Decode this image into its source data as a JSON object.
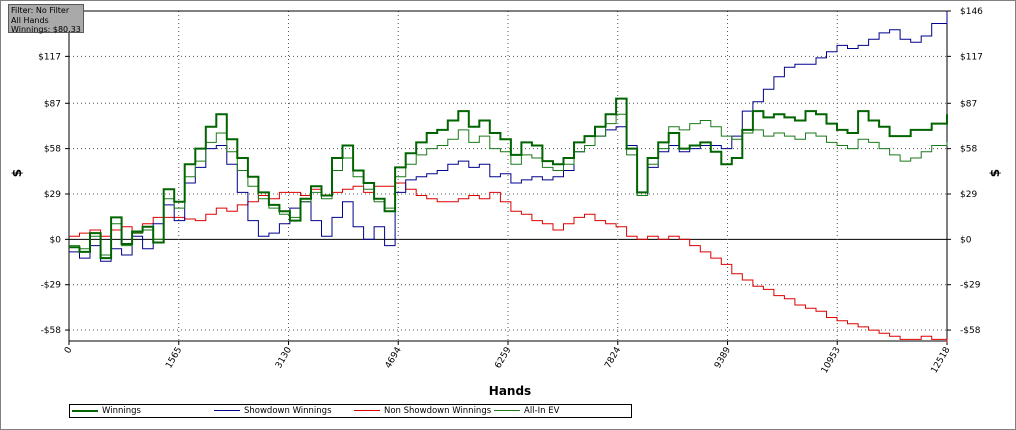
{
  "info": {
    "filter": "Filter: No Filter",
    "hands": "All Hands",
    "winnings": "Winnings: $80.33"
  },
  "chart_data": {
    "type": "line",
    "title": "",
    "xlabel": "Hands",
    "ylabel": "$",
    "y2label": "$",
    "xlim": [
      0,
      12518
    ],
    "ylim": [
      -65,
      146
    ],
    "x_ticks": [
      0,
      1565,
      3130,
      4694,
      6259,
      7824,
      9389,
      10953,
      12518
    ],
    "y_ticks": [
      146,
      117,
      87,
      58,
      29,
      0,
      -29,
      -58
    ],
    "y_tick_labels": [
      "$146",
      "$117",
      "$87",
      "$58",
      "$29",
      "$0",
      "-$29",
      "-$58"
    ],
    "grid": true,
    "legend_position": "bottom",
    "colors": {
      "winnings": "#006400",
      "showdown": "#00008b",
      "nonshowdown": "#dd0000",
      "allin": "#1a7a1a"
    },
    "series": [
      {
        "name": "Winnings",
        "key": "winnings",
        "x": [
          0,
          150,
          300,
          450,
          600,
          750,
          900,
          1050,
          1200,
          1350,
          1500,
          1650,
          1800,
          1950,
          2100,
          2250,
          2400,
          2550,
          2700,
          2850,
          3000,
          3150,
          3300,
          3450,
          3600,
          3750,
          3900,
          4050,
          4200,
          4350,
          4500,
          4650,
          4800,
          4950,
          5100,
          5250,
          5400,
          5550,
          5700,
          5850,
          6000,
          6150,
          6300,
          6450,
          6600,
          6750,
          6900,
          7050,
          7200,
          7350,
          7500,
          7650,
          7800,
          7950,
          8100,
          8250,
          8400,
          8550,
          8700,
          8850,
          9000,
          9150,
          9300,
          9450,
          9600,
          9750,
          9900,
          10050,
          10200,
          10350,
          10500,
          10650,
          10800,
          10950,
          11100,
          11250,
          11400,
          11550,
          11700,
          11850,
          12000,
          12150,
          12300,
          12518
        ],
        "y": [
          -5,
          -8,
          4,
          -12,
          14,
          -3,
          5,
          8,
          -2,
          32,
          24,
          48,
          58,
          72,
          80,
          64,
          52,
          40,
          30,
          22,
          18,
          12,
          26,
          34,
          28,
          52,
          60,
          44,
          36,
          26,
          18,
          46,
          55,
          62,
          68,
          70,
          76,
          82,
          72,
          76,
          68,
          64,
          54,
          62,
          60,
          50,
          48,
          52,
          62,
          66,
          72,
          80,
          90,
          58,
          30,
          52,
          62,
          68,
          58,
          60,
          62,
          56,
          48,
          52,
          70,
          82,
          78,
          80,
          78,
          76,
          82,
          80,
          74,
          70,
          68,
          82,
          76,
          72,
          66,
          66,
          70,
          70,
          74,
          80
        ]
      },
      {
        "name": "Showdown Winnings",
        "key": "showdown",
        "x": [
          0,
          150,
          300,
          450,
          600,
          750,
          900,
          1050,
          1200,
          1350,
          1500,
          1650,
          1800,
          1950,
          2100,
          2250,
          2400,
          2550,
          2700,
          2850,
          3000,
          3150,
          3300,
          3450,
          3600,
          3750,
          3900,
          4050,
          4200,
          4350,
          4500,
          4650,
          4800,
          4950,
          5100,
          5250,
          5400,
          5550,
          5700,
          5850,
          6000,
          6150,
          6300,
          6450,
          6600,
          6750,
          6900,
          7050,
          7200,
          7350,
          7500,
          7650,
          7800,
          7950,
          8100,
          8250,
          8400,
          8550,
          8700,
          8850,
          9000,
          9150,
          9300,
          9450,
          9600,
          9750,
          9900,
          10050,
          10200,
          10350,
          10500,
          10650,
          10800,
          10950,
          11100,
          11250,
          11400,
          11550,
          11700,
          11850,
          12000,
          12150,
          12300,
          12518
        ],
        "y": [
          -8,
          -12,
          -4,
          -14,
          -6,
          -10,
          2,
          -6,
          10,
          22,
          12,
          36,
          46,
          58,
          60,
          48,
          30,
          12,
          2,
          4,
          10,
          20,
          24,
          12,
          2,
          14,
          24,
          8,
          0,
          8,
          -4,
          30,
          38,
          40,
          42,
          44,
          48,
          50,
          46,
          48,
          40,
          42,
          36,
          38,
          40,
          38,
          40,
          44,
          56,
          60,
          66,
          70,
          72,
          60,
          28,
          46,
          56,
          60,
          56,
          58,
          60,
          60,
          58,
          66,
          82,
          88,
          96,
          104,
          110,
          112,
          112,
          116,
          120,
          124,
          122,
          124,
          128,
          132,
          134,
          128,
          126,
          130,
          138,
          146
        ]
      },
      {
        "name": "Non Showdown Winnings",
        "key": "nonshowdown",
        "x": [
          0,
          150,
          300,
          450,
          600,
          750,
          900,
          1050,
          1200,
          1350,
          1500,
          1650,
          1800,
          1950,
          2100,
          2250,
          2400,
          2550,
          2700,
          2850,
          3000,
          3150,
          3300,
          3450,
          3600,
          3750,
          3900,
          4050,
          4200,
          4350,
          4500,
          4650,
          4800,
          4950,
          5100,
          5250,
          5400,
          5550,
          5700,
          5850,
          6000,
          6150,
          6300,
          6450,
          6600,
          6750,
          6900,
          7050,
          7200,
          7350,
          7500,
          7650,
          7800,
          7950,
          8100,
          8250,
          8400,
          8550,
          8700,
          8850,
          9000,
          9150,
          9300,
          9450,
          9600,
          9750,
          9900,
          10050,
          10200,
          10350,
          10500,
          10650,
          10800,
          10950,
          11100,
          11250,
          11400,
          11550,
          11700,
          11850,
          12000,
          12150,
          12300,
          12518
        ],
        "y": [
          2,
          4,
          6,
          2,
          6,
          8,
          4,
          10,
          14,
          14,
          14,
          13,
          12,
          16,
          20,
          18,
          22,
          24,
          28,
          26,
          30,
          30,
          28,
          32,
          28,
          30,
          32,
          34,
          30,
          34,
          34,
          36,
          32,
          28,
          26,
          24,
          24,
          26,
          28,
          26,
          30,
          24,
          18,
          16,
          12,
          10,
          6,
          10,
          14,
          16,
          12,
          10,
          8,
          2,
          0,
          2,
          0,
          2,
          0,
          -4,
          -8,
          -12,
          -16,
          -22,
          -26,
          -30,
          -32,
          -36,
          -38,
          -42,
          -44,
          -46,
          -50,
          -52,
          -54,
          -56,
          -58,
          -60,
          -62,
          -64,
          -64,
          -62,
          -64,
          -66
        ]
      },
      {
        "name": "All-In EV",
        "key": "allin",
        "x": [
          0,
          150,
          300,
          450,
          600,
          750,
          900,
          1050,
          1200,
          1350,
          1500,
          1650,
          1800,
          1950,
          2100,
          2250,
          2400,
          2550,
          2700,
          2850,
          3000,
          3150,
          3300,
          3450,
          3600,
          3750,
          3900,
          4050,
          4200,
          4350,
          4500,
          4650,
          4800,
          4950,
          5100,
          5250,
          5400,
          5550,
          5700,
          5850,
          6000,
          6150,
          6300,
          6450,
          6600,
          6750,
          6900,
          7050,
          7200,
          7350,
          7500,
          7650,
          7800,
          7950,
          8100,
          8250,
          8400,
          8550,
          8700,
          8850,
          9000,
          9150,
          9300,
          9450,
          9600,
          9750,
          9900,
          10050,
          10200,
          10350,
          10500,
          10650,
          10800,
          10950,
          11100,
          11250,
          11400,
          11550,
          11700,
          11850,
          12000,
          12150,
          12300,
          12518
        ],
        "y": [
          -4,
          -6,
          2,
          -10,
          10,
          -4,
          4,
          6,
          0,
          26,
          20,
          40,
          50,
          62,
          68,
          56,
          44,
          34,
          26,
          20,
          16,
          14,
          24,
          30,
          26,
          44,
          52,
          40,
          32,
          24,
          20,
          40,
          48,
          54,
          58,
          60,
          64,
          70,
          62,
          66,
          58,
          56,
          48,
          54,
          52,
          46,
          44,
          48,
          56,
          60,
          66,
          74,
          80,
          54,
          28,
          48,
          58,
          72,
          70,
          74,
          76,
          72,
          66,
          64,
          68,
          70,
          66,
          68,
          66,
          64,
          68,
          66,
          62,
          60,
          58,
          64,
          62,
          58,
          54,
          50,
          52,
          56,
          60,
          62
        ]
      }
    ]
  },
  "legend": {
    "items": [
      "Winnings",
      "Showdown Winnings",
      "Non Showdown Winnings",
      "All-In EV"
    ]
  }
}
